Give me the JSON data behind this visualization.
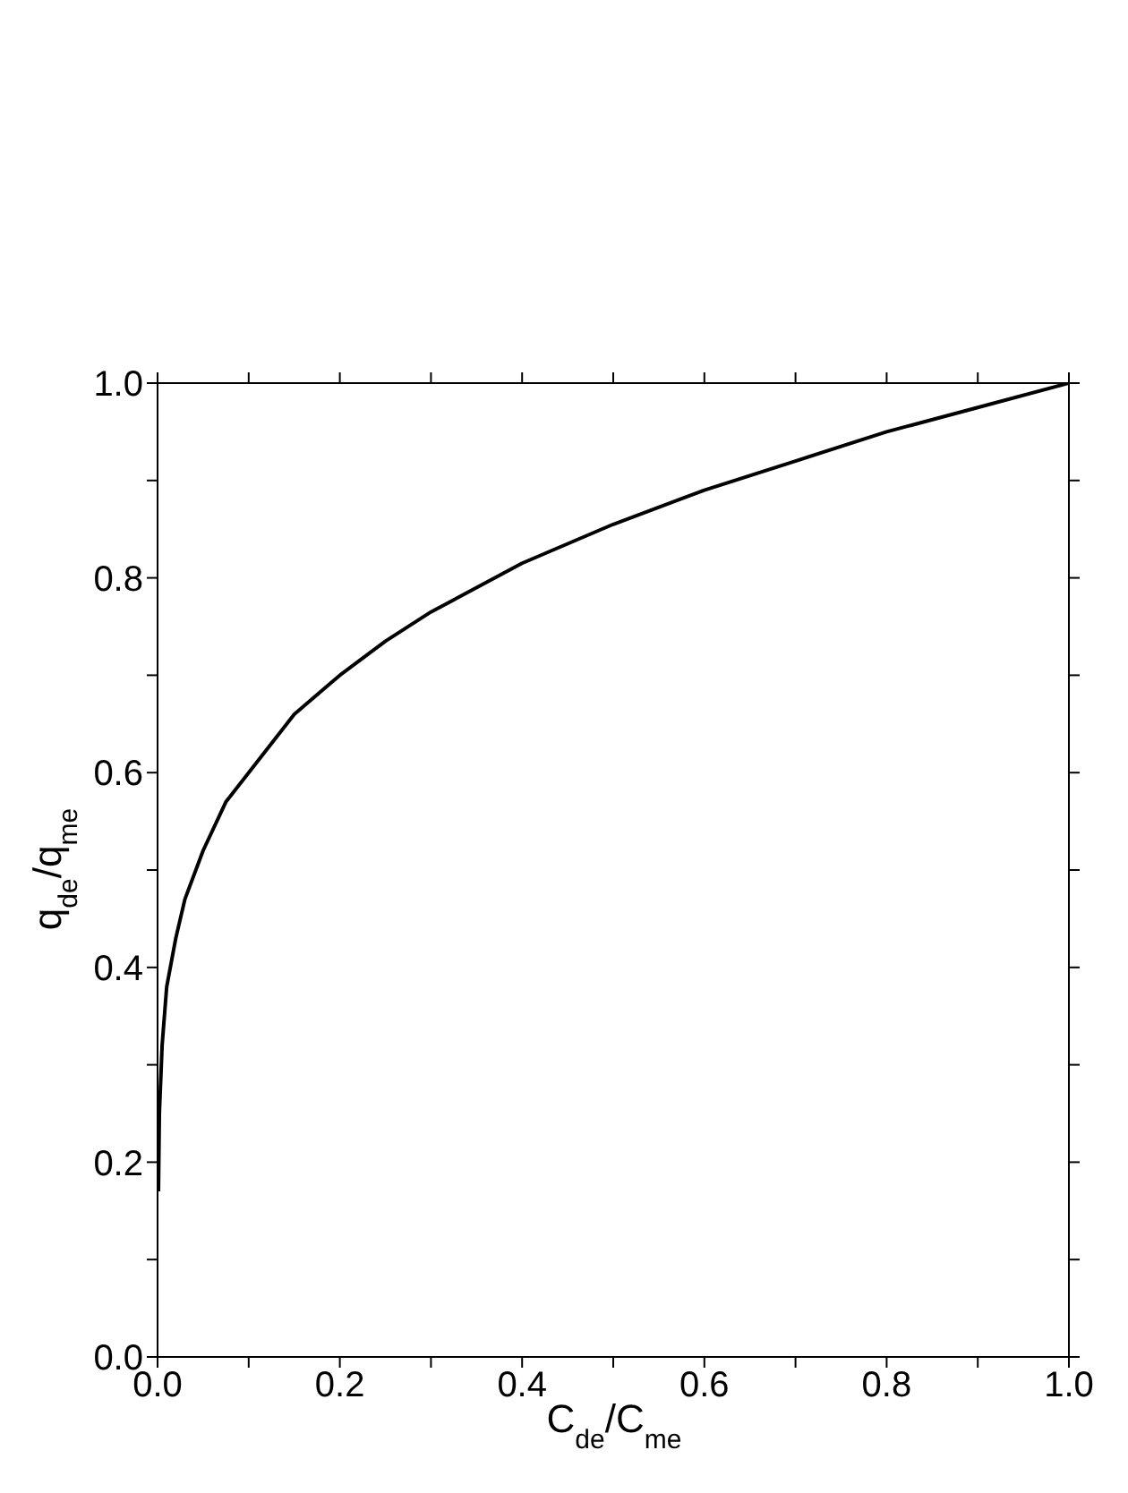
{
  "chart_data": {
    "type": "line",
    "xlabel": "C$_{de}$/C$_{me}$",
    "ylabel": "q$_{de}$/q$_{me}$",
    "x": [
      0.001,
      0.002,
      0.005,
      0.01,
      0.02,
      0.03,
      0.05,
      0.075,
      0.1,
      0.15,
      0.2,
      0.25,
      0.3,
      0.4,
      0.5,
      0.6,
      0.7,
      0.8,
      0.9,
      1.0
    ],
    "series": [
      {
        "color": "#000000",
        "values": [
          0.17,
          0.25,
          0.32,
          0.38,
          0.43,
          0.47,
          0.52,
          0.57,
          0.6,
          0.66,
          0.7,
          0.735,
          0.765,
          0.815,
          0.855,
          0.89,
          0.92,
          0.95,
          0.975,
          1.0
        ]
      }
    ],
    "xlim": [
      0,
      1
    ],
    "ylim": [
      0,
      1
    ],
    "xticks": [
      {
        "value": 0,
        "label": "0.0"
      },
      {
        "value": 0.1,
        "label": null
      },
      0.2,
      {
        "value": 0.3,
        "label": null
      },
      0.4,
      {
        "value": 0.5,
        "label": null
      },
      0.6,
      {
        "value": 0.7,
        "label": null
      },
      0.8,
      {
        "value": 0.9,
        "label": null
      },
      {
        "value": 1,
        "label": "1.0"
      }
    ],
    "yticks": [
      {
        "value": 0,
        "label": "0.0"
      },
      {
        "value": 0.1,
        "label": null
      },
      0.2,
      {
        "value": 0.3,
        "label": null
      },
      0.4,
      {
        "value": 0.5,
        "label": null
      },
      0.6,
      {
        "value": 0.7,
        "label": null
      },
      0.8,
      {
        "value": 0.9,
        "label": null
      },
      {
        "value": 1,
        "label": "1.0"
      }
    ],
    "marker": "none",
    "line_style": "solid"
  }
}
